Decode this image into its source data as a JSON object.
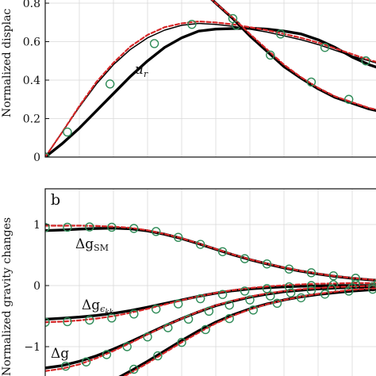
{
  "chart_data": [
    {
      "type": "line",
      "panel_label": "",
      "ylabel": "Normalized displac",
      "ylim": [
        0,
        0.85
      ],
      "yticks": [
        "0",
        "0.2",
        "0.4",
        "0.6",
        "0.8"
      ],
      "ytick_values": [
        0,
        0.2,
        0.4,
        0.6,
        0.8
      ],
      "xlim": [
        0,
        1
      ],
      "grid": true,
      "curve_labels": [
        {
          "text": "u",
          "sub": "r"
        }
      ],
      "series": [
        {
          "id": "ur-thick",
          "style": "thick-black",
          "x": [
            0,
            0.05,
            0.1,
            0.15,
            0.2,
            0.25,
            0.3,
            0.35,
            0.4,
            0.45,
            0.5,
            0.55,
            0.6,
            0.65,
            0.7,
            0.75,
            0.8,
            0.85,
            0.9,
            0.95,
            1.0
          ],
          "y": [
            0,
            0.07,
            0.15,
            0.24,
            0.33,
            0.42,
            0.5,
            0.57,
            0.62,
            0.655,
            0.665,
            0.668,
            0.67,
            0.665,
            0.655,
            0.64,
            0.61,
            0.57,
            0.52,
            0.48,
            0.45
          ]
        },
        {
          "id": "ur-thin",
          "style": "thin-black",
          "x": [
            0,
            0.05,
            0.1,
            0.15,
            0.2,
            0.25,
            0.3,
            0.35,
            0.4,
            0.45,
            0.5,
            0.55,
            0.6,
            0.65,
            0.7,
            0.75,
            0.8,
            0.85,
            0.9,
            0.95,
            1.0
          ],
          "y": [
            0,
            0.13,
            0.26,
            0.38,
            0.48,
            0.56,
            0.62,
            0.66,
            0.685,
            0.695,
            0.69,
            0.68,
            0.665,
            0.65,
            0.63,
            0.61,
            0.585,
            0.555,
            0.525,
            0.5,
            0.475
          ]
        },
        {
          "id": "ur-dashed",
          "style": "dashed-red",
          "x": [
            0,
            0.05,
            0.1,
            0.15,
            0.2,
            0.25,
            0.3,
            0.35,
            0.4,
            0.45,
            0.5,
            0.55,
            0.6,
            0.65,
            0.7,
            0.75,
            0.8,
            0.85,
            0.9,
            0.95,
            1.0
          ],
          "y": [
            0,
            0.13,
            0.265,
            0.39,
            0.49,
            0.575,
            0.635,
            0.675,
            0.695,
            0.705,
            0.7,
            0.69,
            0.675,
            0.66,
            0.64,
            0.62,
            0.595,
            0.565,
            0.535,
            0.505,
            0.48
          ]
        },
        {
          "id": "ur-markers",
          "style": "green-circles",
          "x": [
            0,
            0.065,
            0.19,
            0.32,
            0.43,
            0.56,
            0.69,
            0.82,
            0.94
          ],
          "y": [
            0,
            0.13,
            0.38,
            0.59,
            0.69,
            0.685,
            0.64,
            0.57,
            0.5
          ]
        },
        {
          "id": "upper-thick",
          "style": "thick-black",
          "x": [
            0.47,
            0.5,
            0.55,
            0.6,
            0.65,
            0.7,
            0.75,
            0.8,
            0.85,
            0.9,
            0.95,
            1.0
          ],
          "y": [
            0.85,
            0.8,
            0.72,
            0.63,
            0.55,
            0.47,
            0.41,
            0.355,
            0.31,
            0.28,
            0.25,
            0.23
          ]
        },
        {
          "id": "upper-dashed",
          "style": "dashed-red",
          "x": [
            0.47,
            0.5,
            0.55,
            0.6,
            0.65,
            0.7,
            0.75,
            0.8,
            0.85,
            0.9,
            0.95,
            1.0
          ],
          "y": [
            0.85,
            0.8,
            0.725,
            0.64,
            0.56,
            0.48,
            0.415,
            0.36,
            0.315,
            0.285,
            0.255,
            0.235
          ]
        },
        {
          "id": "upper-markers",
          "style": "green-circles",
          "x": [
            0.55,
            0.66,
            0.78,
            0.89,
            0.99
          ],
          "y": [
            0.72,
            0.53,
            0.39,
            0.3,
            0.24
          ]
        }
      ]
    },
    {
      "type": "line",
      "panel_label": "b",
      "ylabel": "Normalized gravity changes",
      "ylim": [
        -1.5,
        1.6
      ],
      "yticks": [
        "1",
        "0",
        "−1"
      ],
      "ytick_values": [
        1,
        0,
        -1
      ],
      "xlim": [
        0,
        1
      ],
      "grid": true,
      "curve_labels": [
        {
          "text": "Δg",
          "sub": "SM"
        },
        {
          "text": "Δg",
          "sub": "ϵ",
          "subsub": "kk"
        },
        {
          "text": "Δg",
          "sub": ""
        }
      ],
      "series": [
        {
          "id": "gSM-thick",
          "style": "thick-black",
          "x": [
            0,
            0.05,
            0.1,
            0.15,
            0.2,
            0.25,
            0.3,
            0.35,
            0.4,
            0.45,
            0.5,
            0.55,
            0.6,
            0.65,
            0.7,
            0.75,
            0.8,
            0.85,
            0.9,
            0.95,
            1.0
          ],
          "y": [
            0.9,
            0.91,
            0.925,
            0.935,
            0.94,
            0.93,
            0.895,
            0.84,
            0.77,
            0.685,
            0.595,
            0.505,
            0.425,
            0.355,
            0.29,
            0.235,
            0.19,
            0.15,
            0.12,
            0.095,
            0.075
          ]
        },
        {
          "id": "gSM-dashed",
          "style": "dashed-red",
          "x": [
            0,
            0.05,
            0.1,
            0.15,
            0.2,
            0.25,
            0.3,
            0.35,
            0.4,
            0.45,
            0.5,
            0.55,
            0.6,
            0.65,
            0.7,
            0.75,
            0.8,
            0.85,
            0.9,
            0.95,
            1.0
          ],
          "y": [
            0.98,
            0.98,
            0.98,
            0.975,
            0.965,
            0.945,
            0.905,
            0.845,
            0.775,
            0.69,
            0.6,
            0.51,
            0.43,
            0.36,
            0.295,
            0.24,
            0.195,
            0.155,
            0.125,
            0.1,
            0.08
          ]
        },
        {
          "id": "gSM-markers",
          "style": "green-circles",
          "x": [
            0,
            0.065,
            0.13,
            0.195,
            0.26,
            0.325,
            0.39,
            0.455,
            0.52,
            0.585,
            0.65,
            0.715,
            0.78,
            0.845,
            0.91
          ],
          "y": [
            0.95,
            0.955,
            0.96,
            0.955,
            0.935,
            0.885,
            0.79,
            0.675,
            0.555,
            0.44,
            0.355,
            0.27,
            0.21,
            0.16,
            0.12
          ]
        },
        {
          "id": "gekk-thick",
          "style": "thick-black",
          "x": [
            0,
            0.05,
            0.1,
            0.15,
            0.2,
            0.25,
            0.3,
            0.35,
            0.4,
            0.45,
            0.5,
            0.55,
            0.6,
            0.65,
            0.7,
            0.75,
            0.8,
            0.85,
            0.9,
            0.95,
            1.0
          ],
          "y": [
            -0.55,
            -0.535,
            -0.515,
            -0.49,
            -0.455,
            -0.41,
            -0.355,
            -0.295,
            -0.235,
            -0.175,
            -0.125,
            -0.085,
            -0.055,
            -0.035,
            -0.02,
            -0.01,
            -0.005,
            0.0,
            0.0,
            0.0,
            0.0
          ]
        },
        {
          "id": "gekk-dashed",
          "style": "dashed-red",
          "x": [
            0,
            0.05,
            0.1,
            0.15,
            0.2,
            0.25,
            0.3,
            0.35,
            0.4,
            0.45,
            0.5,
            0.55,
            0.6,
            0.65,
            0.7,
            0.75,
            0.8,
            0.85,
            0.9,
            0.95,
            1.0
          ],
          "y": [
            -0.6,
            -0.59,
            -0.57,
            -0.54,
            -0.5,
            -0.445,
            -0.38,
            -0.31,
            -0.24,
            -0.175,
            -0.12,
            -0.075,
            -0.04,
            -0.015,
            0.005,
            0.02,
            0.03,
            0.035,
            0.04,
            0.04,
            0.04
          ]
        },
        {
          "id": "gekk-markers",
          "style": "green-circles",
          "x": [
            0,
            0.065,
            0.13,
            0.195,
            0.26,
            0.325,
            0.39,
            0.455,
            0.52,
            0.585,
            0.65,
            0.715,
            0.78,
            0.845,
            0.91,
            0.975
          ],
          "y": [
            -0.6,
            -0.59,
            -0.565,
            -0.53,
            -0.465,
            -0.385,
            -0.3,
            -0.215,
            -0.145,
            -0.09,
            -0.05,
            -0.02,
            0.0,
            0.015,
            0.025,
            0.03
          ]
        },
        {
          "id": "g-thick",
          "style": "thick-black",
          "x": [
            0,
            0.05,
            0.1,
            0.15,
            0.2,
            0.25,
            0.3,
            0.35,
            0.4,
            0.45,
            0.5,
            0.55,
            0.6,
            0.65,
            0.7,
            0.75,
            0.8,
            0.85,
            0.9,
            0.95,
            1.0
          ],
          "y": [
            -1.35,
            -1.31,
            -1.24,
            -1.15,
            -1.04,
            -0.92,
            -0.79,
            -0.66,
            -0.54,
            -0.43,
            -0.33,
            -0.255,
            -0.19,
            -0.14,
            -0.1,
            -0.075,
            -0.055,
            -0.04,
            -0.03,
            -0.02,
            -0.015
          ]
        },
        {
          "id": "g-dashed",
          "style": "dashed-red",
          "x": [
            0,
            0.05,
            0.1,
            0.15,
            0.2,
            0.25,
            0.3,
            0.35,
            0.4,
            0.45,
            0.5,
            0.55,
            0.6,
            0.65,
            0.7,
            0.75,
            0.8,
            0.85,
            0.9,
            0.95,
            1.0
          ],
          "y": [
            -1.4,
            -1.36,
            -1.29,
            -1.19,
            -1.07,
            -0.94,
            -0.8,
            -0.665,
            -0.54,
            -0.425,
            -0.325,
            -0.245,
            -0.18,
            -0.13,
            -0.09,
            -0.06,
            -0.04,
            -0.025,
            -0.015,
            -0.005,
            0.0
          ]
        },
        {
          "id": "g-markers",
          "style": "green-circles",
          "x": [
            0.06,
            0.12,
            0.18,
            0.24,
            0.3,
            0.36,
            0.42,
            0.48,
            0.54,
            0.6,
            0.66,
            0.72,
            0.78,
            0.84,
            0.9,
            0.96
          ],
          "y": [
            -1.32,
            -1.25,
            -1.13,
            -1.0,
            -0.84,
            -0.69,
            -0.55,
            -0.42,
            -0.32,
            -0.235,
            -0.17,
            -0.12,
            -0.08,
            -0.055,
            -0.035,
            -0.02
          ]
        },
        {
          "id": "g4-thick",
          "style": "thick-black",
          "x": [
            0.2,
            0.25,
            0.3,
            0.35,
            0.4,
            0.45,
            0.5,
            0.55,
            0.6,
            0.65,
            0.7,
            0.75,
            0.8,
            0.85,
            0.9,
            0.95,
            1.0
          ],
          "y": [
            -1.55,
            -1.4,
            -1.24,
            -1.07,
            -0.9,
            -0.74,
            -0.6,
            -0.48,
            -0.38,
            -0.3,
            -0.235,
            -0.185,
            -0.145,
            -0.115,
            -0.09,
            -0.07,
            -0.055
          ]
        },
        {
          "id": "g4-dashed",
          "style": "dashed-red",
          "x": [
            0.2,
            0.25,
            0.3,
            0.35,
            0.4,
            0.45,
            0.5,
            0.55,
            0.6,
            0.65,
            0.7,
            0.75,
            0.8,
            0.85,
            0.9,
            0.95,
            1.0
          ],
          "y": [
            -1.58,
            -1.43,
            -1.27,
            -1.1,
            -0.93,
            -0.77,
            -0.62,
            -0.495,
            -0.39,
            -0.305,
            -0.235,
            -0.18,
            -0.135,
            -0.1,
            -0.07,
            -0.05,
            -0.035
          ]
        },
        {
          "id": "g4-markers",
          "style": "green-circles",
          "x": [
            0.26,
            0.33,
            0.4,
            0.47,
            0.54,
            0.61,
            0.68,
            0.75,
            0.82,
            0.89,
            0.96
          ],
          "y": [
            -1.37,
            -1.15,
            -0.93,
            -0.72,
            -0.54,
            -0.4,
            -0.29,
            -0.2,
            -0.14,
            -0.09,
            -0.06
          ]
        }
      ]
    }
  ],
  "colors": {
    "thick-black": "#000000",
    "thin-black": "#000000",
    "dashed-red": "#d62728",
    "green-circles": "#2e8b57",
    "grid": "#d9d9d9",
    "axis": "#111111"
  }
}
